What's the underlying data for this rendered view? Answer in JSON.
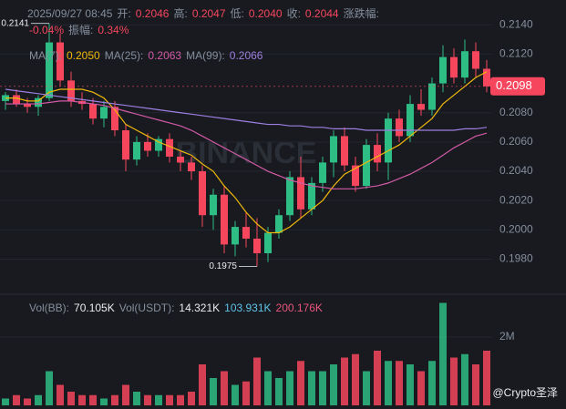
{
  "chart_data": {
    "type": "candlestick",
    "info": {
      "time": "2025/09/27 08:45",
      "open_label": "开:",
      "open": "0.2046",
      "high_label": "高:",
      "high": "0.2047",
      "low_label": "低:",
      "low": "0.2040",
      "close_label": "收:",
      "close": "0.2044",
      "change_label": "涨跌幅:",
      "change": "-0.04%",
      "amp_label": "振幅:",
      "amp": "0.34%"
    },
    "ma_info": [
      {
        "label": "MA(7):",
        "value": "0.2050",
        "color": "#f0b90b"
      },
      {
        "label": "MA(25):",
        "value": "0.2063",
        "color": "#d25aa6"
      },
      {
        "label": "MA(99):",
        "value": "0.2066",
        "color": "#9d7fe0"
      }
    ],
    "vol_info": [
      {
        "label": "Vol(BB):",
        "value": "70.105K",
        "color": "#eaecef"
      },
      {
        "label": "Vol(USDT):",
        "value": "14.321K",
        "color": "#eaecef"
      },
      {
        "label": null,
        "value": "103.931K",
        "color": "#5ec3e8"
      },
      {
        "label": null,
        "value": "200.176K",
        "color": "#e8557a"
      }
    ],
    "watermark": "BINANCE",
    "credit": "@Crypto圣泽",
    "up_color": "#2ebd85",
    "down_color": "#f6465d",
    "open": [
      0.2088,
      0.2092,
      0.2086,
      0.2084,
      0.209,
      0.2128,
      0.2102,
      0.2088,
      0.2086,
      0.2076,
      0.2084,
      0.2068,
      0.2048,
      0.206,
      0.2054,
      0.2062,
      0.205,
      0.2046,
      0.204,
      0.201,
      0.2024,
      0.199,
      0.2002,
      0.1994,
      0.1984,
      0.1998,
      0.201,
      0.2036,
      0.2014,
      0.2032,
      0.2046,
      0.2064,
      0.2044,
      0.203,
      0.2058,
      0.2046,
      0.2076,
      0.2064,
      0.2086,
      0.2082,
      0.21,
      0.2118,
      0.2104,
      0.2122,
      0.211
    ],
    "high": [
      0.2094,
      0.2096,
      0.209,
      0.2092,
      0.2141,
      0.2134,
      0.2108,
      0.2094,
      0.209,
      0.2088,
      0.2088,
      0.2072,
      0.2064,
      0.2066,
      0.2064,
      0.2066,
      0.2054,
      0.205,
      0.2044,
      0.2028,
      0.203,
      0.2006,
      0.2012,
      0.2008,
      0.2002,
      0.2014,
      0.204,
      0.205,
      0.2036,
      0.205,
      0.2068,
      0.207,
      0.205,
      0.2062,
      0.2066,
      0.208,
      0.2082,
      0.2092,
      0.2096,
      0.2104,
      0.2126,
      0.2124,
      0.213,
      0.2128,
      0.2116
    ],
    "low": [
      0.2082,
      0.2084,
      0.208,
      0.2078,
      0.2088,
      0.2098,
      0.2084,
      0.2082,
      0.2072,
      0.207,
      0.2064,
      0.204,
      0.2044,
      0.205,
      0.205,
      0.2046,
      0.204,
      0.2034,
      0.2002,
      0.2,
      0.1984,
      0.1982,
      0.1988,
      0.1975,
      0.1978,
      0.1994,
      0.2006,
      0.2008,
      0.201,
      0.2026,
      0.2036,
      0.204,
      0.2026,
      0.2028,
      0.204,
      0.2034,
      0.206,
      0.206,
      0.2078,
      0.2078,
      0.2094,
      0.21,
      0.21,
      0.2104,
      0.2094
    ],
    "close": [
      0.2092,
      0.2086,
      0.2084,
      0.209,
      0.2128,
      0.2102,
      0.2088,
      0.2086,
      0.2076,
      0.2084,
      0.2068,
      0.2048,
      0.206,
      0.2054,
      0.2062,
      0.205,
      0.2046,
      0.204,
      0.201,
      0.2024,
      0.199,
      0.2002,
      0.1994,
      0.1984,
      0.1998,
      0.201,
      0.2036,
      0.2014,
      0.2032,
      0.2046,
      0.2064,
      0.2044,
      0.203,
      0.2058,
      0.2046,
      0.2076,
      0.2064,
      0.2086,
      0.2082,
      0.21,
      0.2118,
      0.2104,
      0.2122,
      0.211,
      0.2098
    ],
    "volume": [
      200000,
      300000,
      200000,
      300000,
      1000000,
      600000,
      400000,
      300000,
      300000,
      200000,
      300000,
      600000,
      400000,
      300000,
      300000,
      300000,
      300000,
      400000,
      1200000,
      800000,
      1000000,
      600000,
      700000,
      1400000,
      1000000,
      800000,
      1000000,
      1300000,
      1000000,
      1000000,
      1200000,
      1400000,
      1500000,
      1000000,
      1600000,
      1300000,
      1300000,
      1200000,
      1000000,
      1300000,
      3000000,
      1400000,
      1500000,
      1200000,
      1600000
    ],
    "ma_lines": [
      {
        "name": "MA(7)",
        "color": "#f0b90b",
        "values": [
          0.209,
          0.209,
          0.2088,
          0.2088,
          0.2094,
          0.2096,
          0.2096,
          0.2096,
          0.2094,
          0.209,
          0.2082,
          0.2072,
          0.2068,
          0.2064,
          0.206,
          0.2057,
          0.2054,
          0.2051,
          0.2045,
          0.204,
          0.203,
          0.2022,
          0.2012,
          0.2004,
          0.1998,
          0.1998,
          0.2002,
          0.2008,
          0.2014,
          0.202,
          0.203,
          0.2038,
          0.2042,
          0.2046,
          0.205,
          0.2054,
          0.2058,
          0.2064,
          0.207,
          0.2076,
          0.2086,
          0.2092,
          0.2098,
          0.2104,
          0.2108
        ]
      },
      {
        "name": "MA(25)",
        "color": "#d25aa6",
        "values": [
          0.2086,
          0.2086,
          0.2086,
          0.2086,
          0.2087,
          0.2088,
          0.2088,
          0.2087,
          0.2086,
          0.2085,
          0.2083,
          0.2081,
          0.2079,
          0.2077,
          0.2075,
          0.2073,
          0.2071,
          0.2068,
          0.2064,
          0.206,
          0.2056,
          0.2052,
          0.2048,
          0.2044,
          0.204,
          0.2037,
          0.2034,
          0.2032,
          0.203,
          0.2029,
          0.2028,
          0.2028,
          0.2028,
          0.2029,
          0.203,
          0.2032,
          0.2035,
          0.2038,
          0.2042,
          0.2046,
          0.2051,
          0.2056,
          0.206,
          0.2064,
          0.2066
        ]
      },
      {
        "name": "MA(99)",
        "color": "#9d7fe0",
        "values": [
          0.2096,
          0.2095,
          0.2094,
          0.2093,
          0.2092,
          0.2091,
          0.209,
          0.2089,
          0.2088,
          0.2087,
          0.2086,
          0.2085,
          0.2084,
          0.2083,
          0.2082,
          0.2081,
          0.208,
          0.2079,
          0.2078,
          0.2077,
          0.2076,
          0.2075,
          0.2074,
          0.2073,
          0.2072,
          0.2072,
          0.2071,
          0.2071,
          0.207,
          0.207,
          0.2069,
          0.2069,
          0.2069,
          0.2068,
          0.2068,
          0.2068,
          0.2068,
          0.2068,
          0.2068,
          0.2068,
          0.2068,
          0.2068,
          0.2069,
          0.2069,
          0.207
        ]
      }
    ],
    "ylim": [
      0.1961,
      0.2152
    ],
    "yticks": [
      {
        "value": 0.214,
        "label": "0.2140"
      },
      {
        "value": 0.212,
        "label": "0.2120"
      },
      {
        "value": 0.208,
        "label": "0.2080"
      },
      {
        "value": 0.206,
        "label": "0.2060"
      },
      {
        "value": 0.204,
        "label": "0.2040"
      },
      {
        "value": 0.202,
        "label": "0.2020"
      },
      {
        "value": 0.2,
        "label": "0.2000"
      },
      {
        "value": 0.198,
        "label": "0.1980"
      }
    ],
    "last_price": {
      "value": 0.2098,
      "label": "0.2098"
    },
    "max_label": {
      "value": 0.2141,
      "label": "0.2141"
    },
    "min_label": {
      "value": 0.1975,
      "label": "0.1975"
    },
    "vlim": [
      0,
      3200000
    ],
    "vticks": [
      {
        "value": 2000000,
        "label": "2M"
      }
    ]
  }
}
